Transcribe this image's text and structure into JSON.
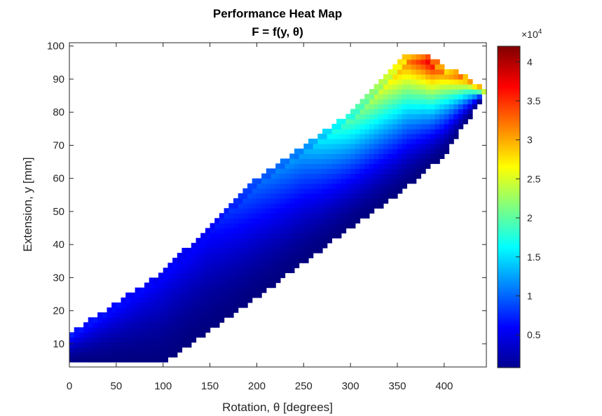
{
  "chart_data": {
    "type": "heatmap",
    "title": "Performance Heat Map",
    "subtitle": "F = f(y, θ)",
    "xlabel": "Rotation, θ [degrees]",
    "ylabel": "Extension, y [mm]",
    "xlim": [
      0,
      445
    ],
    "ylim": [
      3,
      101
    ],
    "x_ticks": [
      "0",
      "50",
      "100",
      "150",
      "200",
      "250",
      "300",
      "350",
      "400"
    ],
    "y_ticks": [
      "10",
      "20",
      "30",
      "40",
      "50",
      "60",
      "70",
      "80",
      "90",
      "100"
    ],
    "colormap": "jet",
    "colorbar": {
      "range": [
        800,
        42000
      ],
      "exponent_label": "×10",
      "exponent_power": "4",
      "ticks": [
        "0.5",
        "1",
        "1.5",
        "2",
        "2.5",
        "3",
        "3.5",
        "4"
      ]
    },
    "grid": false,
    "field": {
      "region_upper_edge": [
        [
          0,
          13
        ],
        [
          100,
          32
        ],
        [
          200,
          60
        ],
        [
          300,
          80
        ],
        [
          360,
          98
        ],
        [
          380,
          98
        ],
        [
          400,
          94
        ],
        [
          425,
          91
        ],
        [
          445,
          86
        ]
      ],
      "region_lower_edge": [
        [
          0,
          4
        ],
        [
          100,
          4
        ],
        [
          200,
          24
        ],
        [
          300,
          45
        ],
        [
          350,
          55
        ],
        [
          400,
          67
        ],
        [
          445,
          86
        ]
      ],
      "ridge_values": [
        [
          0,
          8000
        ],
        [
          100,
          6500
        ],
        [
          150,
          7000
        ],
        [
          200,
          11000
        ],
        [
          250,
          14000
        ],
        [
          300,
          22000
        ],
        [
          340,
          30000
        ],
        [
          370,
          38000
        ],
        [
          385,
          42000
        ],
        [
          400,
          36000
        ]
      ]
    }
  }
}
